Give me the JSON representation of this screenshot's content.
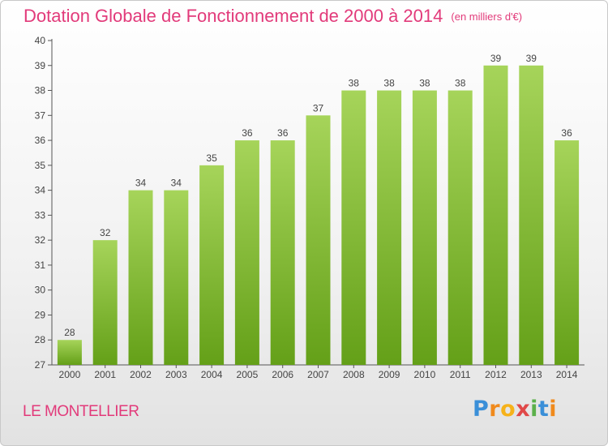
{
  "title": "Dotation Globale de Fonctionnement de 2000 à 2014",
  "unit": "(en milliers d'€)",
  "town": "LE MONTELLIER",
  "logo": {
    "p": "P",
    "r": "r",
    "o": "o",
    "x": "x",
    "i1": "i",
    "t": "t",
    "i2": "i"
  },
  "colors": {
    "title": "#e23a7a",
    "bar_top": "#a6d45a",
    "bar_bottom": "#64a018"
  },
  "chart_data": {
    "type": "bar",
    "title": "Dotation Globale de Fonctionnement de 2000 à 2014",
    "categories": [
      "2000",
      "2001",
      "2002",
      "2003",
      "2004",
      "2005",
      "2006",
      "2007",
      "2008",
      "2009",
      "2010",
      "2011",
      "2012",
      "2013",
      "2014"
    ],
    "values": [
      28,
      32,
      34,
      34,
      35,
      36,
      36,
      37,
      38,
      38,
      38,
      38,
      39,
      39,
      36
    ],
    "ylim": [
      27,
      40
    ],
    "yticks": [
      27,
      28,
      29,
      30,
      31,
      32,
      33,
      34,
      35,
      36,
      37,
      38,
      39,
      40
    ],
    "grid": false,
    "xlabel": "",
    "ylabel": ""
  }
}
